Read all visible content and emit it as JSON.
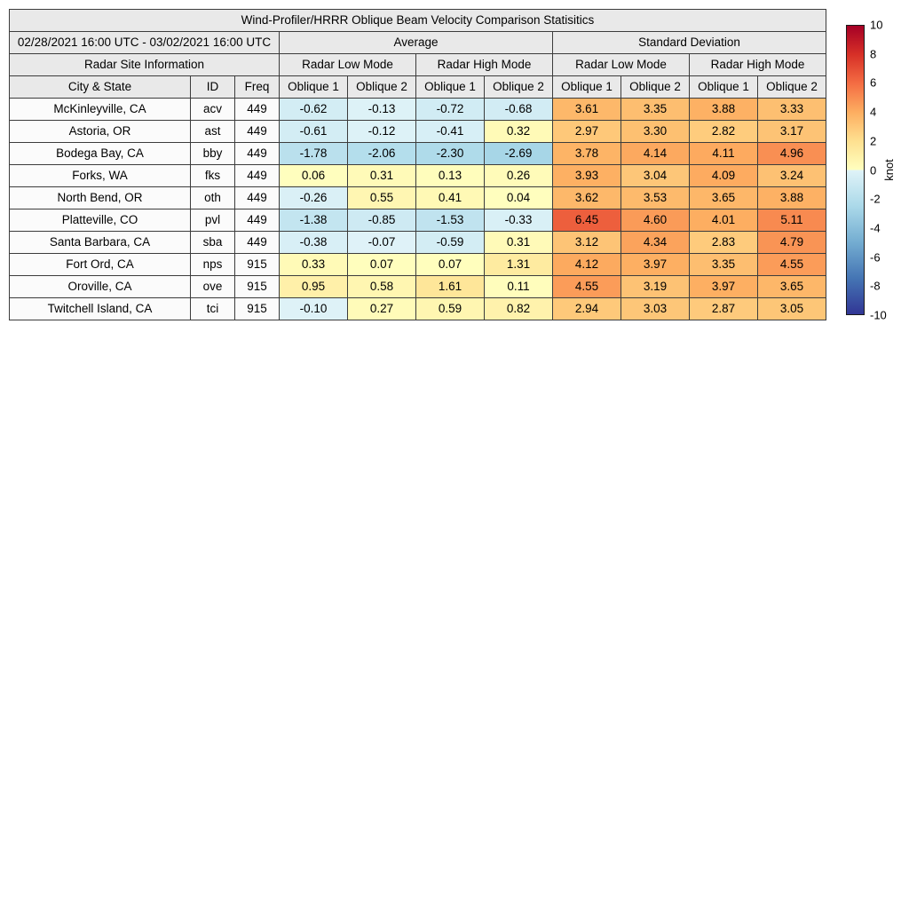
{
  "figure": {
    "background": "#ffffff"
  },
  "table": {
    "date_range": "02/28/2021 16:00 UTC - 03/02/2021 16:00 UTC",
    "avg_header": "Average",
    "std_header": "Standard Deviation",
    "site_info_header": "Radar Site Information",
    "low_mode_header": "Radar Low Mode",
    "high_mode_header": "Radar High Mode",
    "city_header": "City & State",
    "id_header": "ID",
    "freq_header": "Freq",
    "oblique1_header": "Oblique 1",
    "oblique2_header": "Oblique 2"
  },
  "colorbar": {
    "label": "knot",
    "min": -10,
    "max": 10,
    "ticks": [
      10,
      8,
      6,
      4,
      2,
      0,
      -2,
      -4,
      -6,
      -8,
      -10
    ]
  },
  "chart_data": {
    "type": "heatmap",
    "title": "Wind-Profiler/HRRR Oblique Beam Velocity Comparison Statisitics",
    "unit": "knot",
    "legend_position": "right-colorbar",
    "color_scale": {
      "min": -10,
      "max": 10,
      "palette": "RdYlBu_r diverging, blue negative / yellow-red positive",
      "negative_stops": [
        [
          -10,
          "#313695"
        ],
        [
          -7.5,
          "#4575b4"
        ],
        [
          -5,
          "#74add1"
        ],
        [
          -2.5,
          "#abd9e9"
        ],
        [
          0,
          "#e0f3f8"
        ]
      ],
      "positive_stops": [
        [
          0,
          "#ffffbf"
        ],
        [
          2,
          "#fee090"
        ],
        [
          4,
          "#fdae61"
        ],
        [
          6,
          "#f46d43"
        ],
        [
          8,
          "#d73027"
        ],
        [
          10,
          "#a50026"
        ]
      ]
    },
    "column_groups": [
      "Average",
      "Standard Deviation"
    ],
    "mode_groups": [
      "Radar Low Mode",
      "Radar High Mode"
    ],
    "oblique_headers": [
      "Oblique 1",
      "Oblique 2",
      "Oblique 1",
      "Oblique 2",
      "Oblique 1",
      "Oblique 2",
      "Oblique 1",
      "Oblique 2"
    ],
    "site_columns": [
      "City & State",
      "ID",
      "Freq"
    ],
    "rows": [
      {
        "city": "McKinleyville, CA",
        "id": "acv",
        "freq": "449",
        "values": [
          "-0.62",
          "-0.13",
          "-0.72",
          "-0.68",
          "3.61",
          "3.35",
          "3.88",
          "3.33"
        ]
      },
      {
        "city": "Astoria, OR",
        "id": "ast",
        "freq": "449",
        "values": [
          "-0.61",
          "-0.12",
          "-0.41",
          "0.32",
          "2.97",
          "3.30",
          "2.82",
          "3.17"
        ]
      },
      {
        "city": "Bodega Bay, CA",
        "id": "bby",
        "freq": "449",
        "values": [
          "-1.78",
          "-2.06",
          "-2.30",
          "-2.69",
          "3.78",
          "4.14",
          "4.11",
          "4.96"
        ]
      },
      {
        "city": "Forks, WA",
        "id": "fks",
        "freq": "449",
        "values": [
          "0.06",
          "0.31",
          "0.13",
          "0.26",
          "3.93",
          "3.04",
          "4.09",
          "3.24"
        ]
      },
      {
        "city": "North Bend, OR",
        "id": "oth",
        "freq": "449",
        "values": [
          "-0.26",
          "0.55",
          "0.41",
          "0.04",
          "3.62",
          "3.53",
          "3.65",
          "3.88"
        ]
      },
      {
        "city": "Platteville, CO",
        "id": "pvl",
        "freq": "449",
        "values": [
          "-1.38",
          "-0.85",
          "-1.53",
          "-0.33",
          "6.45",
          "4.60",
          "4.01",
          "5.11"
        ]
      },
      {
        "city": "Santa Barbara, CA",
        "id": "sba",
        "freq": "449",
        "values": [
          "-0.38",
          "-0.07",
          "-0.59",
          "0.31",
          "3.12",
          "4.34",
          "2.83",
          "4.79"
        ]
      },
      {
        "city": "Fort Ord, CA",
        "id": "nps",
        "freq": "915",
        "values": [
          "0.33",
          "0.07",
          "0.07",
          "1.31",
          "4.12",
          "3.97",
          "3.35",
          "4.55"
        ]
      },
      {
        "city": "Oroville, CA",
        "id": "ove",
        "freq": "915",
        "values": [
          "0.95",
          "0.58",
          "1.61",
          "0.11",
          "4.55",
          "3.19",
          "3.97",
          "3.65"
        ]
      },
      {
        "city": "Twitchell Island, CA",
        "id": "tci",
        "freq": "915",
        "values": [
          "-0.10",
          "0.27",
          "0.59",
          "0.82",
          "2.94",
          "3.03",
          "2.87",
          "3.05"
        ]
      }
    ]
  }
}
